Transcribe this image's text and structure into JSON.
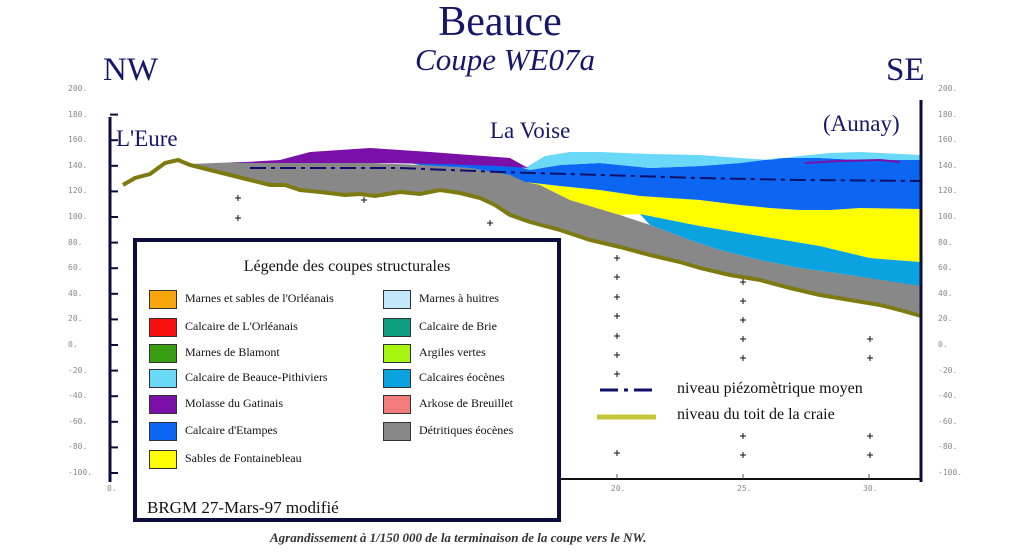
{
  "header": {
    "title": "Beauce",
    "subtitle": "Coupe WE07a",
    "left_direction": "NW",
    "right_direction": "SE"
  },
  "places": {
    "left": "L'Eure",
    "middle": "La Voise",
    "right": "(Aunay)"
  },
  "axes": {
    "y_ticks": [
      "200.",
      "180.",
      "160.",
      "140.",
      "120.",
      "100.",
      "80.",
      "60.",
      "40.",
      "20.",
      "0.",
      "-20.",
      "-40.",
      "-60.",
      "-80.",
      "-100."
    ],
    "y_values": [
      200,
      180,
      160,
      140,
      120,
      100,
      80,
      60,
      40,
      20,
      0,
      -20,
      -40,
      -60,
      -80,
      -100
    ],
    "x_ticks": [
      "0.",
      "20.",
      "25.",
      "30."
    ],
    "x_values": [
      0,
      20,
      25,
      30
    ]
  },
  "legend": {
    "title": "Légende des coupes structurales",
    "left_items": [
      {
        "label": "Marnes et sables de l'Orléanais",
        "color": "#f9a50c"
      },
      {
        "label": "Calcaire de L'Orléanais",
        "color": "#f70f0f"
      },
      {
        "label": "Marnes de Blamont",
        "color": "#3a9e12"
      },
      {
        "label": "Calcaire de Beauce-Pithiviers",
        "color": "#6ad8f7"
      },
      {
        "label": "Molasse du Gatinais",
        "color": "#7a10a8"
      },
      {
        "label": "Calcaire d'Etampes",
        "color": "#0d66f2"
      },
      {
        "label": "Sables de Fontainebleau",
        "color": "#ffff00"
      }
    ],
    "right_items": [
      {
        "label": "Marnes à huitres",
        "color": "#c4e8fb"
      },
      {
        "label": "Calcaire de Brie",
        "color": "#0c9e7e"
      },
      {
        "label": "Argiles vertes",
        "color": "#a6f50e"
      },
      {
        "label": "Calcaires éocènes",
        "color": "#0aa3e0"
      },
      {
        "label": "Arkose de Breuillet",
        "color": "#f27c7c"
      },
      {
        "label": "Détritiques éocènes",
        "color": "#888888"
      }
    ],
    "credit": "BRGM 27-Mars-97 modifié"
  },
  "line_legend": {
    "piezometric": {
      "label": "niveau piézomètrique moyen",
      "color": "#0f0f6b"
    },
    "chalk_top": {
      "label": "niveau du toit de la craie",
      "color": "#c8c43a"
    }
  },
  "caption": "Agrandissement à 1/150 000 de la terminaison de la coupe vers le NW."
}
